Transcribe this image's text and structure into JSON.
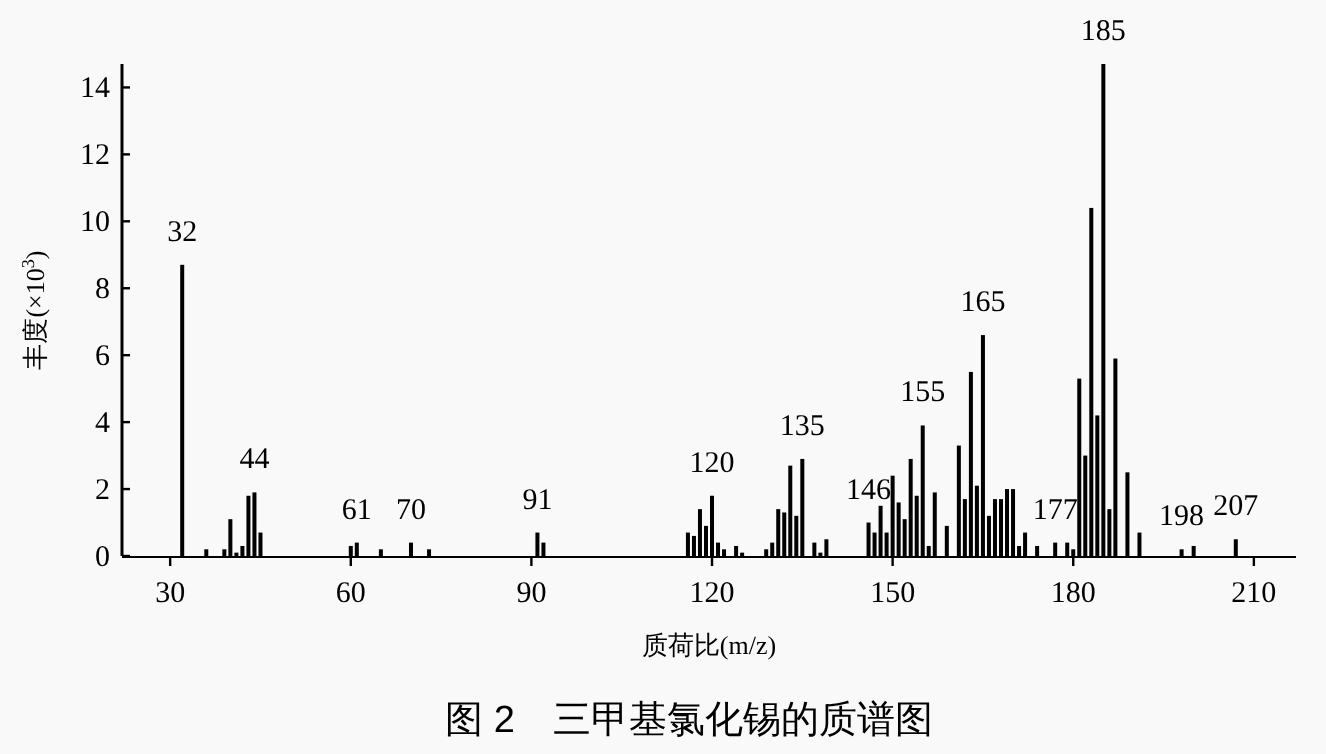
{
  "chart_data": {
    "type": "bar",
    "title": "图 2　三甲基氯化锡的质谱图",
    "xlabel": "质荷比(m/z)",
    "ylabel": "丰度(×10$^{3}$)",
    "color": "#000000",
    "x": [
      32,
      36,
      39,
      40,
      41,
      42,
      43,
      44,
      45,
      60,
      61,
      65,
      70,
      73,
      91,
      92,
      116,
      117,
      118,
      119,
      120,
      121,
      122,
      124,
      125,
      129,
      130,
      131,
      132,
      133,
      134,
      135,
      137,
      138,
      139,
      146,
      147,
      148,
      149,
      150,
      151,
      152,
      153,
      154,
      155,
      156,
      157,
      159,
      161,
      162,
      163,
      164,
      165,
      166,
      167,
      168,
      169,
      170,
      171,
      172,
      174,
      177,
      179,
      180,
      181,
      182,
      183,
      184,
      185,
      186,
      187,
      189,
      191,
      198,
      200,
      207
    ],
    "values": [
      8.7,
      0.2,
      0.2,
      1.1,
      0.1,
      0.3,
      1.8,
      1.9,
      0.7,
      0.3,
      0.4,
      0.2,
      0.4,
      0.2,
      0.7,
      0.4,
      0.7,
      0.6,
      1.4,
      0.9,
      1.8,
      0.4,
      0.2,
      0.3,
      0.1,
      0.2,
      0.4,
      1.4,
      1.3,
      2.7,
      1.2,
      2.9,
      0.4,
      0.1,
      0.5,
      1.0,
      0.7,
      1.5,
      0.7,
      2.4,
      1.6,
      1.1,
      2.9,
      1.8,
      3.9,
      0.3,
      1.9,
      0.9,
      3.3,
      1.7,
      5.5,
      2.1,
      6.6,
      1.2,
      1.7,
      1.7,
      2.0,
      2.0,
      0.3,
      0.7,
      0.3,
      0.4,
      0.4,
      0.2,
      5.3,
      3.0,
      10.4,
      4.2,
      14.7,
      1.4,
      5.9,
      2.5,
      0.7,
      0.2,
      0.3,
      0.5
    ],
    "annotations": [
      {
        "text": "32",
        "x": 32,
        "y": 8.7
      },
      {
        "text": "44",
        "x": 44,
        "y": 1.9
      },
      {
        "text": "61",
        "x": 61,
        "y": 0.4
      },
      {
        "text": "70",
        "x": 70,
        "y": 0.4
      },
      {
        "text": "91",
        "x": 91,
        "y": 0.7
      },
      {
        "text": "120",
        "x": 120,
        "y": 1.8
      },
      {
        "text": "135",
        "x": 135,
        "y": 2.9
      },
      {
        "text": "146",
        "x": 146,
        "y": 1.0
      },
      {
        "text": "155",
        "x": 155,
        "y": 3.9
      },
      {
        "text": "165",
        "x": 165,
        "y": 6.6
      },
      {
        "text": "177",
        "x": 177,
        "y": 0.4
      },
      {
        "text": "185",
        "x": 185,
        "y": 14.7
      },
      {
        "text": "198",
        "x": 198,
        "y": 0.2
      },
      {
        "text": "207",
        "x": 207,
        "y": 0.5
      }
    ],
    "xlim": [
      22,
      217
    ],
    "ylim": [
      0,
      14.7
    ],
    "xticks": [
      30,
      60,
      90,
      120,
      150,
      180,
      210
    ],
    "yticks": [
      0,
      2,
      4,
      6,
      8,
      10,
      12,
      14
    ],
    "grid": false
  }
}
